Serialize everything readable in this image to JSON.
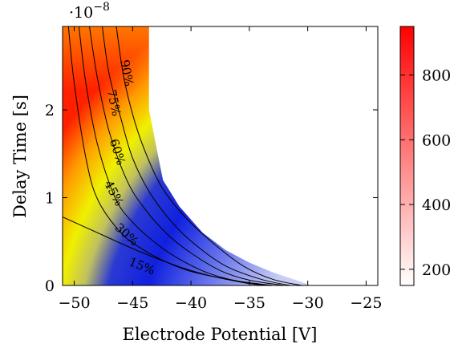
{
  "chart_data": {
    "type": "heatmap",
    "title": "",
    "xlabel": "Electrode Potential [V]",
    "ylabel": "Delay Time [s]",
    "xlim": [
      -51,
      -24
    ],
    "ylim": [
      0,
      2.95
    ],
    "y_scale_factor": "·10",
    "y_scale_exponent": "−8",
    "x_ticks": [
      -50,
      -45,
      -40,
      -35,
      -30,
      -25
    ],
    "x_tick_labels": [
      "−50",
      "−45",
      "−40",
      "−35",
      "−30",
      "−25"
    ],
    "y_ticks": [
      0,
      1,
      2
    ],
    "y_tick_labels": [
      "0",
      "1",
      "2"
    ],
    "grid": false,
    "colorbar": {
      "range": [
        150,
        950
      ],
      "ticks": [
        200,
        400,
        600,
        800
      ],
      "tick_labels": [
        "200",
        "400",
        "600",
        "800"
      ],
      "colors": [
        "#ffffff",
        "#ff0000"
      ]
    },
    "region_boundary": [
      [
        -51,
        2.95
      ],
      [
        -43.6,
        2.95
      ],
      [
        -43.6,
        2.0
      ],
      [
        -43.0,
        1.6
      ],
      [
        -42.4,
        1.2
      ],
      [
        -41.0,
        0.9
      ],
      [
        -39.0,
        0.6
      ],
      [
        -37.0,
        0.4
      ],
      [
        -35.0,
        0.26
      ],
      [
        -33.0,
        0.15
      ],
      [
        -31.0,
        0.06
      ],
      [
        -29.7,
        0.0
      ],
      [
        -51,
        0.0
      ]
    ],
    "contours": [
      {
        "label": "15%",
        "points": [
          [
            -51,
            0.78
          ],
          [
            -48,
            0.6
          ],
          [
            -45,
            0.42
          ],
          [
            -42,
            0.26
          ],
          [
            -40,
            0.17
          ],
          [
            -38,
            0.1
          ],
          [
            -36,
            0.05
          ],
          [
            -34,
            0.015
          ],
          [
            -33,
            0.0
          ]
        ]
      },
      {
        "label": "30%",
        "points": [
          [
            -50.5,
            2.95
          ],
          [
            -50,
            2.3
          ],
          [
            -49,
            1.45
          ],
          [
            -48,
            0.98
          ],
          [
            -46,
            0.6
          ],
          [
            -44,
            0.4
          ],
          [
            -42,
            0.26
          ],
          [
            -40,
            0.16
          ],
          [
            -37,
            0.07
          ],
          [
            -35,
            0.02
          ],
          [
            -33.5,
            0.0
          ]
        ]
      },
      {
        "label": "45%",
        "points": [
          [
            -49.6,
            2.95
          ],
          [
            -49,
            2.3
          ],
          [
            -48,
            1.6
          ],
          [
            -46.5,
            1.0
          ],
          [
            -45,
            0.72
          ],
          [
            -43,
            0.48
          ],
          [
            -41,
            0.3
          ],
          [
            -38.5,
            0.14
          ],
          [
            -36,
            0.05
          ],
          [
            -33,
            0.0
          ]
        ]
      },
      {
        "label": "60%",
        "points": [
          [
            -48.7,
            2.95
          ],
          [
            -48,
            2.35
          ],
          [
            -47,
            1.75
          ],
          [
            -45.5,
            1.2
          ],
          [
            -44,
            0.88
          ],
          [
            -42,
            0.58
          ],
          [
            -40,
            0.37
          ],
          [
            -37.5,
            0.17
          ],
          [
            -35,
            0.06
          ],
          [
            -32,
            0.0
          ]
        ]
      },
      {
        "label": "75%",
        "points": [
          [
            -47.6,
            2.95
          ],
          [
            -47,
            2.4
          ],
          [
            -46,
            1.9
          ],
          [
            -45,
            1.45
          ],
          [
            -43.5,
            1.05
          ],
          [
            -41.5,
            0.7
          ],
          [
            -39.5,
            0.45
          ],
          [
            -37,
            0.22
          ],
          [
            -34,
            0.07
          ],
          [
            -31.5,
            0.0
          ]
        ]
      },
      {
        "label": "90%",
        "points": [
          [
            -46.4,
            2.95
          ],
          [
            -45.8,
            2.4
          ],
          [
            -45,
            1.95
          ],
          [
            -44,
            1.55
          ],
          [
            -42.5,
            1.12
          ],
          [
            -40.5,
            0.78
          ],
          [
            -38,
            0.47
          ],
          [
            -35.5,
            0.22
          ],
          [
            -33,
            0.07
          ],
          [
            -30.5,
            0.0
          ]
        ]
      }
    ],
    "contour_label_positions": [
      {
        "label": "15%",
        "x": -44.2,
        "y": 0.22,
        "angle": 22
      },
      {
        "label": "30%",
        "x": -45.5,
        "y": 0.58,
        "angle": 42
      },
      {
        "label": "45%",
        "x": -46.6,
        "y": 1.05,
        "angle": 62
      },
      {
        "label": "60%",
        "x": -46.3,
        "y": 1.52,
        "angle": 72
      },
      {
        "label": "75%",
        "x": -46.6,
        "y": 2.08,
        "angle": 78
      },
      {
        "label": "90%",
        "x": -45.5,
        "y": 2.42,
        "angle": 80
      }
    ]
  }
}
